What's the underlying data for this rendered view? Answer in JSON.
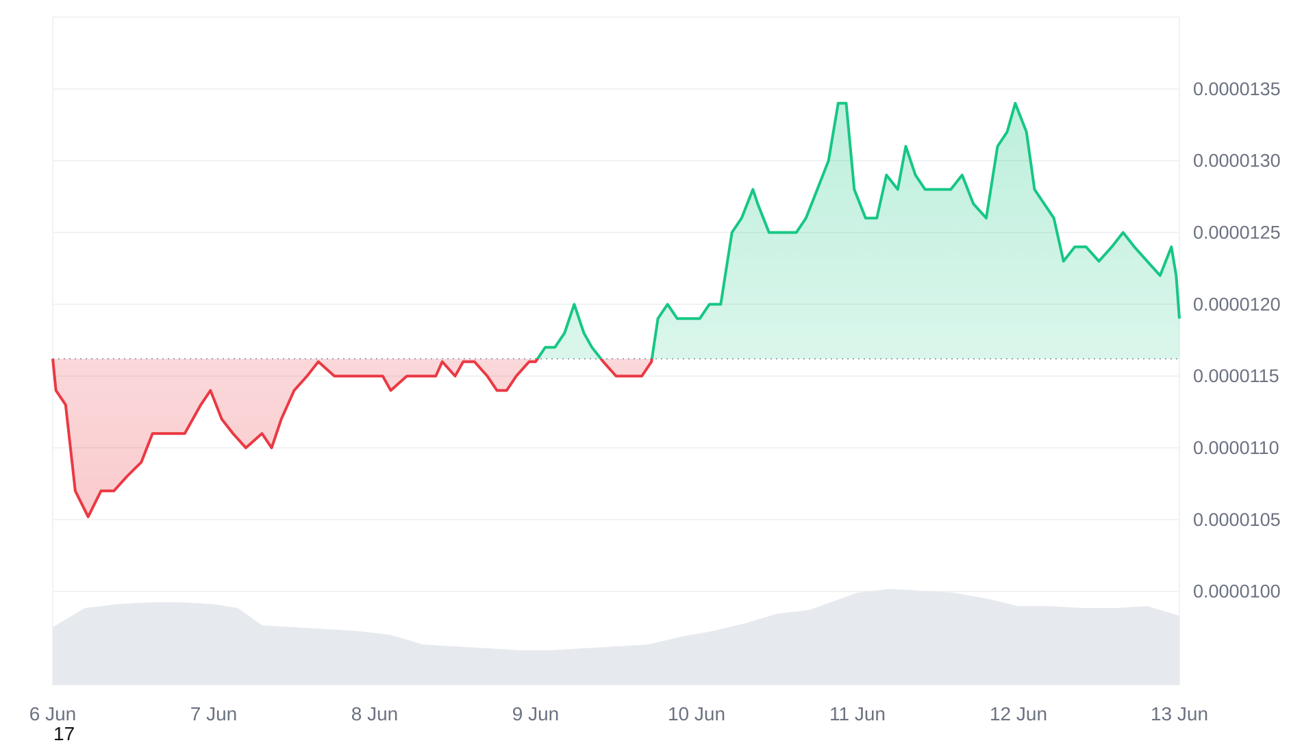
{
  "chart_data": {
    "type": "area",
    "x_axis": {
      "type": "date",
      "ticks": [
        "6 Jun",
        "7 Jun",
        "8 Jun",
        "9 Jun",
        "10 Jun",
        "11 Jun",
        "12 Jun",
        "13 Jun"
      ],
      "range_days": [
        0,
        7
      ]
    },
    "y_axis": {
      "position": "right",
      "ticks": [
        "0.0000100",
        "0.0000105",
        "0.0000110",
        "0.0000115",
        "0.0000120",
        "0.0000125",
        "0.0000130",
        "0.0000135"
      ],
      "range": [
        9.35e-06,
        1.4e-05
      ]
    },
    "baseline": 1.162e-05,
    "grid": true,
    "colors": {
      "above": "#16c784",
      "below": "#ea3943",
      "above_fill": "#16c784",
      "below_fill": "#ea3943",
      "volume": "#e6e9ee",
      "grid": "#eceef1",
      "baseline": "#9ca3af"
    },
    "series": [
      {
        "values": [
          [
            0.0,
            1.162e-05
          ],
          [
            0.02,
            1.14e-05
          ],
          [
            0.08,
            1.13e-05
          ],
          [
            0.14,
            1.07e-05
          ],
          [
            0.22,
            1.052e-05
          ],
          [
            0.3,
            1.07e-05
          ],
          [
            0.38,
            1.07e-05
          ],
          [
            0.46,
            1.08e-05
          ],
          [
            0.55,
            1.09e-05
          ],
          [
            0.62,
            1.11e-05
          ],
          [
            0.72,
            1.11e-05
          ],
          [
            0.82,
            1.11e-05
          ],
          [
            0.92,
            1.13e-05
          ],
          [
            0.98,
            1.14e-05
          ],
          [
            1.05,
            1.12e-05
          ],
          [
            1.12,
            1.11e-05
          ],
          [
            1.2,
            1.1e-05
          ],
          [
            1.3,
            1.11e-05
          ],
          [
            1.36,
            1.1e-05
          ],
          [
            1.42,
            1.12e-05
          ],
          [
            1.5,
            1.14e-05
          ],
          [
            1.58,
            1.15e-05
          ],
          [
            1.65,
            1.16e-05
          ],
          [
            1.75,
            1.15e-05
          ],
          [
            1.85,
            1.15e-05
          ],
          [
            1.95,
            1.15e-05
          ],
          [
            2.05,
            1.15e-05
          ],
          [
            2.1,
            1.14e-05
          ],
          [
            2.2,
            1.15e-05
          ],
          [
            2.3,
            1.15e-05
          ],
          [
            2.38,
            1.15e-05
          ],
          [
            2.42,
            1.16e-05
          ],
          [
            2.5,
            1.15e-05
          ],
          [
            2.55,
            1.16e-05
          ],
          [
            2.62,
            1.16e-05
          ],
          [
            2.7,
            1.15e-05
          ],
          [
            2.76,
            1.14e-05
          ],
          [
            2.82,
            1.14e-05
          ],
          [
            2.88,
            1.15e-05
          ],
          [
            2.96,
            1.16e-05
          ],
          [
            3.0,
            1.16e-05
          ],
          [
            3.06,
            1.17e-05
          ],
          [
            3.12,
            1.17e-05
          ],
          [
            3.18,
            1.18e-05
          ],
          [
            3.24,
            1.2e-05
          ],
          [
            3.3,
            1.18e-05
          ],
          [
            3.35,
            1.17e-05
          ],
          [
            3.42,
            1.16e-05
          ],
          [
            3.5,
            1.15e-05
          ],
          [
            3.58,
            1.15e-05
          ],
          [
            3.66,
            1.15e-05
          ],
          [
            3.72,
            1.16e-05
          ],
          [
            3.76,
            1.19e-05
          ],
          [
            3.82,
            1.2e-05
          ],
          [
            3.88,
            1.19e-05
          ],
          [
            3.95,
            1.19e-05
          ],
          [
            4.02,
            1.19e-05
          ],
          [
            4.08,
            1.2e-05
          ],
          [
            4.15,
            1.2e-05
          ],
          [
            4.22,
            1.25e-05
          ],
          [
            4.28,
            1.26e-05
          ],
          [
            4.35,
            1.28e-05
          ],
          [
            4.38,
            1.27e-05
          ],
          [
            4.45,
            1.25e-05
          ],
          [
            4.55,
            1.25e-05
          ],
          [
            4.62,
            1.25e-05
          ],
          [
            4.68,
            1.26e-05
          ],
          [
            4.75,
            1.28e-05
          ],
          [
            4.82,
            1.3e-05
          ],
          [
            4.88,
            1.34e-05
          ],
          [
            4.93,
            1.34e-05
          ],
          [
            4.98,
            1.28e-05
          ],
          [
            5.05,
            1.26e-05
          ],
          [
            5.12,
            1.26e-05
          ],
          [
            5.18,
            1.29e-05
          ],
          [
            5.25,
            1.28e-05
          ],
          [
            5.3,
            1.31e-05
          ],
          [
            5.36,
            1.29e-05
          ],
          [
            5.42,
            1.28e-05
          ],
          [
            5.5,
            1.28e-05
          ],
          [
            5.58,
            1.28e-05
          ],
          [
            5.65,
            1.29e-05
          ],
          [
            5.72,
            1.27e-05
          ],
          [
            5.8,
            1.26e-05
          ],
          [
            5.87,
            1.31e-05
          ],
          [
            5.93,
            1.32e-05
          ],
          [
            5.98,
            1.34e-05
          ],
          [
            6.05,
            1.32e-05
          ],
          [
            6.1,
            1.28e-05
          ],
          [
            6.16,
            1.27e-05
          ],
          [
            6.22,
            1.26e-05
          ],
          [
            6.28,
            1.23e-05
          ],
          [
            6.35,
            1.24e-05
          ],
          [
            6.42,
            1.24e-05
          ],
          [
            6.5,
            1.23e-05
          ],
          [
            6.58,
            1.24e-05
          ],
          [
            6.65,
            1.25e-05
          ],
          [
            6.72,
            1.24e-05
          ],
          [
            6.8,
            1.23e-05
          ],
          [
            6.88,
            1.22e-05
          ],
          [
            6.95,
            1.24e-05
          ],
          [
            6.98,
            1.22e-05
          ],
          [
            7.0,
            1.19e-05
          ]
        ]
      },
      {
        "type": "volume",
        "values": [
          [
            0.0,
            0.3
          ],
          [
            0.2,
            0.4
          ],
          [
            0.4,
            0.42
          ],
          [
            0.6,
            0.43
          ],
          [
            0.8,
            0.43
          ],
          [
            1.0,
            0.42
          ],
          [
            1.15,
            0.4
          ],
          [
            1.3,
            0.31
          ],
          [
            1.5,
            0.3
          ],
          [
            1.7,
            0.29
          ],
          [
            1.9,
            0.28
          ],
          [
            2.1,
            0.26
          ],
          [
            2.3,
            0.21
          ],
          [
            2.5,
            0.2
          ],
          [
            2.7,
            0.19
          ],
          [
            2.9,
            0.18
          ],
          [
            3.1,
            0.18
          ],
          [
            3.3,
            0.19
          ],
          [
            3.5,
            0.2
          ],
          [
            3.7,
            0.21
          ],
          [
            3.9,
            0.25
          ],
          [
            4.1,
            0.28
          ],
          [
            4.3,
            0.32
          ],
          [
            4.5,
            0.37
          ],
          [
            4.7,
            0.39
          ],
          [
            4.9,
            0.45
          ],
          [
            5.0,
            0.48
          ],
          [
            5.2,
            0.5
          ],
          [
            5.4,
            0.49
          ],
          [
            5.6,
            0.48
          ],
          [
            5.8,
            0.45
          ],
          [
            6.0,
            0.41
          ],
          [
            6.2,
            0.41
          ],
          [
            6.4,
            0.4
          ],
          [
            6.6,
            0.4
          ],
          [
            6.8,
            0.41
          ],
          [
            7.0,
            0.36
          ]
        ]
      }
    ]
  },
  "stray_label": "17"
}
